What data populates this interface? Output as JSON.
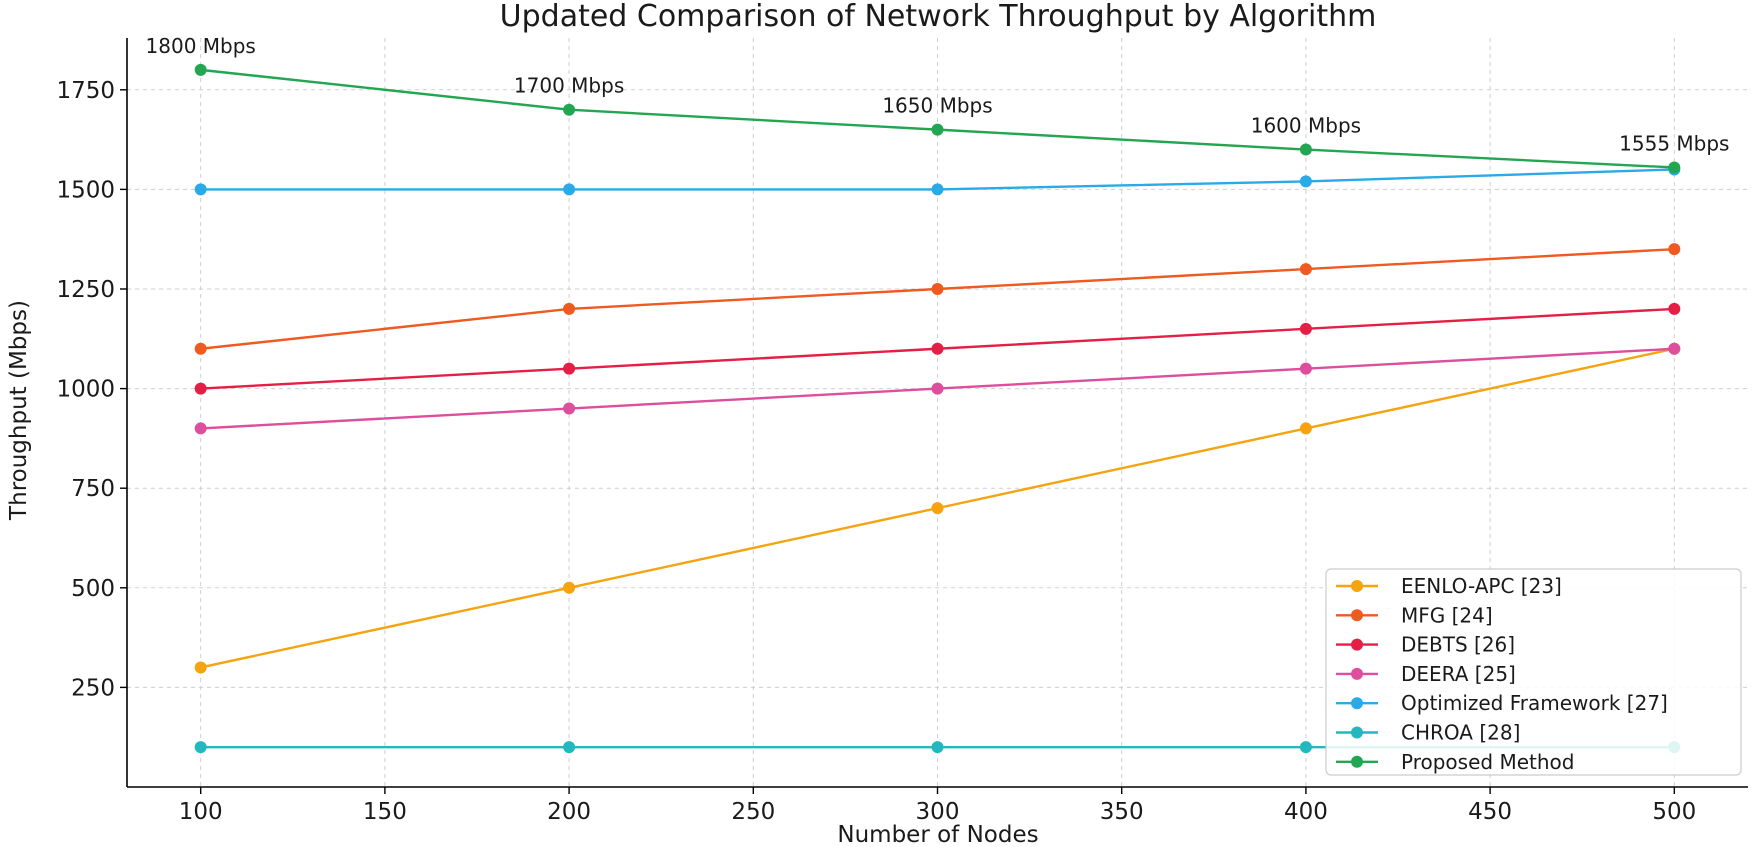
{
  "chart_data": {
    "type": "line",
    "title": "Updated Comparison of Network Throughput by Algorithm",
    "xlabel": "Number of Nodes",
    "ylabel": "Throughput (Mbps)",
    "x": [
      100,
      200,
      300,
      400,
      500
    ],
    "xlim": [
      80,
      520
    ],
    "ylim": [
      0,
      1880
    ],
    "xticks": [
      100,
      150,
      200,
      250,
      300,
      350,
      400,
      450,
      500
    ],
    "yticks": [
      250,
      500,
      750,
      1000,
      1250,
      1500,
      1750
    ],
    "grid": true,
    "legend_position": "bottom-right",
    "series": [
      {
        "name": "EENLO-APC [23]",
        "color": "#f5a30f",
        "values": [
          300,
          500,
          700,
          900,
          1100
        ]
      },
      {
        "name": "MFG [24]",
        "color": "#ee5a1f",
        "values": [
          1100,
          1200,
          1250,
          1300,
          1350
        ]
      },
      {
        "name": "DEBTS [26]",
        "color": "#e41f45",
        "values": [
          1000,
          1050,
          1100,
          1150,
          1200
        ]
      },
      {
        "name": "DEERA [25]",
        "color": "#dd4e9c",
        "values": [
          900,
          950,
          1000,
          1050,
          1100
        ]
      },
      {
        "name": "Optimized Framework [27]",
        "color": "#2aaae6",
        "values": [
          1500,
          1500,
          1500,
          1520,
          1550
        ]
      },
      {
        "name": "CHROA [28]",
        "color": "#23b8c0",
        "values": [
          100,
          100,
          100,
          100,
          100
        ]
      },
      {
        "name": "Proposed Method",
        "color": "#22a651",
        "values": [
          1800,
          1700,
          1650,
          1600,
          1555
        ]
      }
    ],
    "annotations": [
      {
        "x": 100,
        "y": 1800,
        "text": "1800 Mbps"
      },
      {
        "x": 200,
        "y": 1700,
        "text": "1700 Mbps"
      },
      {
        "x": 300,
        "y": 1650,
        "text": "1650 Mbps"
      },
      {
        "x": 400,
        "y": 1600,
        "text": "1600 Mbps"
      },
      {
        "x": 500,
        "y": 1555,
        "text": "1555 Mbps"
      }
    ]
  }
}
